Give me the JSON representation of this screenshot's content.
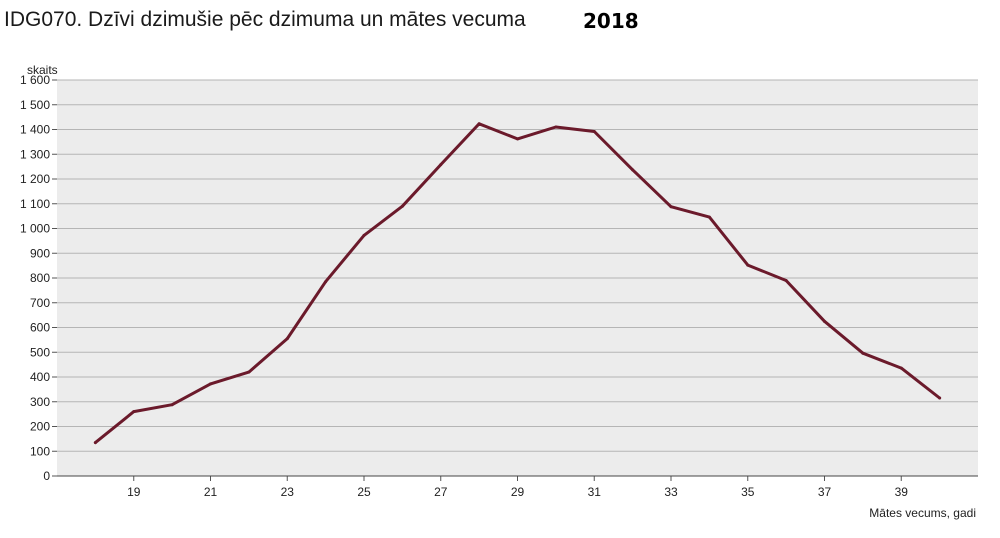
{
  "title": "IDG070. Dzīvi dzimušie pēc dzimuma un mātes vecuma",
  "year": "2018",
  "chart_data": {
    "type": "line",
    "ylabel": "skaits",
    "xlabel": "Mātes vecums, gadi",
    "x": [
      18,
      19,
      20,
      21,
      22,
      23,
      24,
      25,
      26,
      27,
      28,
      29,
      30,
      31,
      32,
      33,
      34,
      35,
      36,
      37,
      38,
      39,
      40
    ],
    "series": [
      {
        "values": [
          135,
          260,
          288,
          372,
          420,
          555,
          785,
          972,
          1090,
          1258,
          1423,
          1362,
          1410,
          1392,
          1237,
          1088,
          1046,
          852,
          790,
          625,
          496,
          436,
          315
        ]
      }
    ],
    "xlim": [
      17,
      41
    ],
    "ylim": [
      0,
      1600
    ],
    "x_ticks": [
      19,
      21,
      23,
      25,
      27,
      29,
      31,
      33,
      35,
      37,
      39
    ],
    "y_ticks": [
      0,
      100,
      200,
      300,
      400,
      500,
      600,
      700,
      800,
      900,
      1000,
      1100,
      1200,
      1300,
      1400,
      1500,
      1600
    ],
    "y_tick_labels": [
      "0",
      "100",
      "200",
      "300",
      "400",
      "500",
      "600",
      "700",
      "800",
      "900",
      "1 000",
      "1 100",
      "1 200",
      "1 300",
      "1 400",
      "1 500",
      "1 600"
    ],
    "grid": true,
    "line_color": "#6b1a2b",
    "plot_background": "#ececec",
    "grid_color": "#b5b5b5"
  }
}
